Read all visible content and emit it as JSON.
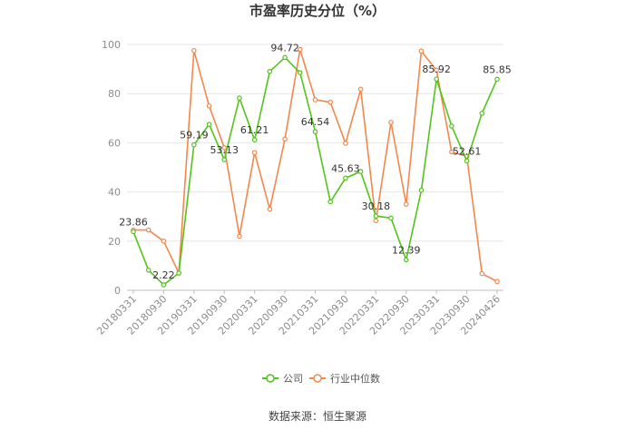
{
  "source": "数据来源：恒生聚源",
  "chart_data": {
    "type": "line",
    "title": "市盈率历史分位（%）",
    "xlabel": "",
    "ylabel": "",
    "ylim": [
      0,
      100
    ],
    "yticks": [
      0,
      20,
      40,
      60,
      80,
      100
    ],
    "x": [
      "20180331",
      "20180630",
      "20180930",
      "20181231",
      "20190331",
      "20190630",
      "20190930",
      "20191231",
      "20200331",
      "20200630",
      "20200930",
      "20201231",
      "20210331",
      "20210630",
      "20210930",
      "20211231",
      "20220331",
      "20220630",
      "20220930",
      "20221231",
      "20230331",
      "20230630",
      "20230930",
      "20231231",
      "20240426"
    ],
    "x_tick_labels": [
      "20180331",
      "20180930",
      "20190331",
      "20190930",
      "20200331",
      "20200930",
      "20210331",
      "20210930",
      "20220331",
      "20220930",
      "20230331",
      "20230930",
      "20240426"
    ],
    "x_tick_indices": [
      0,
      2,
      4,
      6,
      8,
      10,
      12,
      14,
      16,
      18,
      20,
      22,
      24
    ],
    "grid": true,
    "legend": "bottom-center",
    "series": [
      {
        "name": "公司",
        "color": "#52c41a",
        "values": [
          23.86,
          8.2,
          2.22,
          7.0,
          59.19,
          67.5,
          53.13,
          78.2,
          61.21,
          89.0,
          94.72,
          88.5,
          64.54,
          36.0,
          45.63,
          48.3,
          30.18,
          29.4,
          12.39,
          40.7,
          85.92,
          66.8,
          52.61,
          72.0,
          85.85
        ],
        "labels": {
          "0": "23.86",
          "2": "2.22",
          "4": "59.19",
          "6": "53.13",
          "8": "61.21",
          "10": "94.72",
          "12": "64.54",
          "14": "45.63",
          "16": "30.18",
          "18": "12.39",
          "20": "85.92",
          "22": "52.61",
          "24": "85.85"
        }
      },
      {
        "name": "行业中位数",
        "color": "#f4874b",
        "values": [
          24.5,
          24.5,
          20.0,
          7.0,
          97.5,
          75.0,
          58.0,
          22.0,
          56.0,
          33.0,
          61.5,
          98.0,
          77.5,
          76.5,
          59.8,
          81.8,
          28.3,
          68.3,
          35.0,
          97.3,
          89.5,
          56.3,
          54.5,
          6.8,
          3.6
        ]
      }
    ]
  }
}
